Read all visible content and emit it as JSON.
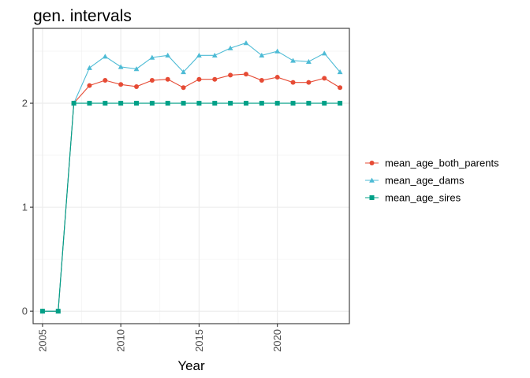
{
  "chart_data": {
    "type": "line",
    "title": "gen. intervals",
    "xlabel": "Year",
    "ylabel": "",
    "xlim": [
      2004.4,
      2024.6
    ],
    "ylim": [
      -0.12,
      2.72
    ],
    "x_ticks": [
      2005,
      2010,
      2015,
      2020
    ],
    "x_tick_labels": [
      "2005",
      "2010",
      "2015",
      "2020"
    ],
    "y_ticks": [
      0,
      1,
      2
    ],
    "y_tick_labels": [
      "0",
      "1",
      "2"
    ],
    "grid": true,
    "legend_position": "right",
    "x": [
      2005,
      2006,
      2007,
      2008,
      2009,
      2010,
      2011,
      2012,
      2013,
      2014,
      2015,
      2016,
      2017,
      2018,
      2019,
      2020,
      2021,
      2022,
      2023,
      2024
    ],
    "series": [
      {
        "name": "mean_age_both_parents",
        "color": "#e64b35",
        "marker": "circle",
        "values": [
          0,
          0,
          2.0,
          2.17,
          2.22,
          2.18,
          2.16,
          2.22,
          2.23,
          2.15,
          2.23,
          2.23,
          2.27,
          2.28,
          2.22,
          2.25,
          2.2,
          2.2,
          2.24,
          2.15
        ]
      },
      {
        "name": "mean_age_dams",
        "color": "#4dbbd5",
        "marker": "triangle",
        "values": [
          0,
          0,
          2.0,
          2.34,
          2.45,
          2.35,
          2.33,
          2.44,
          2.46,
          2.3,
          2.46,
          2.46,
          2.53,
          2.58,
          2.46,
          2.5,
          2.41,
          2.4,
          2.48,
          2.3
        ]
      },
      {
        "name": "mean_age_sires",
        "color": "#00a087",
        "marker": "square",
        "values": [
          0,
          0,
          2.0,
          2.0,
          2.0,
          2.0,
          2.0,
          2.0,
          2.0,
          2.0,
          2.0,
          2.0,
          2.0,
          2.0,
          2.0,
          2.0,
          2.0,
          2.0,
          2.0,
          2.0
        ]
      }
    ]
  }
}
